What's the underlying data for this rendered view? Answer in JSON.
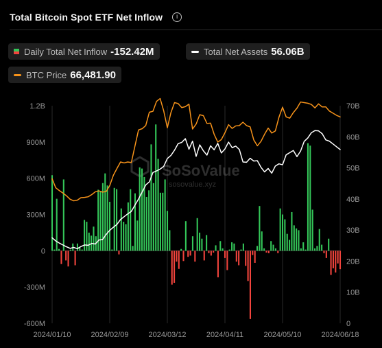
{
  "header": {
    "title": "Total Bitcoin Spot ETF Net Inflow",
    "info_icon": "info-icon"
  },
  "legend": {
    "inflow": {
      "label": "Daily Total Net Inflow",
      "value": "-152.42M"
    },
    "assets": {
      "label": "Total Net Assets",
      "value": "56.06B"
    },
    "price": {
      "label": "BTC Price",
      "value": "66,481.90"
    }
  },
  "watermark": {
    "brand": "SoSoValue",
    "site": "sosovalue.xyz"
  },
  "colors": {
    "positive": "#34c759",
    "negative": "#f2443d",
    "assets_line": "#ffffff",
    "price_line": "#f7931a",
    "grid": "#2a2a2a",
    "background": "#000000"
  },
  "chart_data": {
    "type": "bar",
    "x_tick_labels": [
      "2024/01/10",
      "2024/02/09",
      "2024/03/12",
      "2024/04/11",
      "2024/05/10",
      "2024/06/18"
    ],
    "left_axis": {
      "ticks": [
        "1.2B",
        "900M",
        "600M",
        "300M",
        "0",
        "-300M",
        "-600M"
      ],
      "ylim": [
        -600,
        1200
      ],
      "unit": "M USD"
    },
    "right_axis": {
      "ticks": [
        "70B",
        "60B",
        "50B",
        "40B",
        "30B",
        "20B",
        "10B",
        "0"
      ],
      "ylim": [
        0,
        70
      ],
      "unit": "B USD"
    },
    "grid": true,
    "series": [
      {
        "name": "Daily Total Net Inflow",
        "type": "bar",
        "values": [
          625,
          10,
          430,
          15,
          -110,
          590,
          -80,
          -130,
          10,
          60,
          -120,
          60,
          30,
          10,
          255,
          240,
          150,
          125,
          200,
          120,
          505,
          490,
          560,
          640,
          540,
          405,
          10,
          520,
          510,
          -30,
          350,
          240,
          220,
          400,
          510,
          40,
          475,
          250,
          690,
          680,
          610,
          445,
          500,
          880,
          560,
          1045,
          760,
          480,
          480,
          590,
          330,
          170,
          -280,
          -265,
          -90,
          -150,
          15,
          -85,
          245,
          -50,
          -40,
          120,
          -90,
          270,
          150,
          100,
          -80,
          130,
          -20,
          -40,
          -15,
          45,
          -220,
          80,
          20,
          -60,
          -160,
          10,
          70,
          60,
          -90,
          -120,
          10,
          60,
          -125,
          -250,
          -565,
          -35,
          -100,
          40,
          370,
          160,
          20,
          -15,
          -20,
          80,
          50,
          20,
          -20,
          350,
          300,
          260,
          140,
          90,
          320,
          210,
          185,
          170,
          20,
          70,
          10,
          890,
          870,
          340,
          20,
          40,
          180,
          50,
          -20,
          -60,
          100,
          -200,
          -145,
          -180,
          -105,
          -152.42
        ],
        "colors": {
          "positive": "#34c759",
          "negative": "#f2443d"
        }
      },
      {
        "name": "Total Net Assets",
        "type": "line",
        "axis": "right",
        "values": [
          27.5,
          26.5,
          25.8,
          25.2,
          24.6,
          24.1,
          24.4,
          24.0,
          24.7,
          25.2,
          25.1,
          25.7,
          25.5,
          26.8,
          26.9,
          28.6,
          29.9,
          30.9,
          31.8,
          33.4,
          34.3,
          35.2,
          36.0,
          38.0,
          40.0,
          42.2,
          44.5,
          45.5,
          48.5,
          49.0,
          49.6,
          50.5,
          53.0,
          54.0,
          55.7,
          57.8,
          58.2,
          59.4,
          56.0,
          58.6,
          53.7,
          57.4,
          55.5,
          54.1,
          57.1,
          55.8,
          57.9,
          54.8,
          56.1,
          58.3,
          56.5,
          57.0,
          55.9,
          51.9,
          51.8,
          53.1,
          52.2,
          52.3,
          50.2,
          48.7,
          49.8,
          48.3,
          50.6,
          51.3,
          51.0,
          54.2,
          54.9,
          55.6,
          53.6,
          55.4,
          58.5,
          59.6,
          61.3,
          62.0,
          61.9,
          61.0,
          59.0,
          58.6,
          57.7,
          56.8,
          55.9
        ],
        "color": "#ffffff"
      },
      {
        "name": "BTC Price",
        "type": "line",
        "axis": "right",
        "values": [
          46.5,
          43.6,
          42.7,
          41.9,
          41.0,
          39.9,
          39.4,
          39.6,
          40.4,
          40.5,
          40.7,
          41.4,
          42.3,
          42.6,
          42.2,
          42.4,
          44.3,
          47.6,
          49.8,
          51.9,
          51.6,
          51.9,
          51.7,
          57.0,
          62.2,
          62.6,
          63.6,
          67.9,
          68.2,
          71.4,
          72.3,
          68.3,
          62.9,
          67.8,
          71.0,
          70.7,
          69.4,
          69.7,
          70.5,
          62.5,
          64.1,
          67.1,
          66.8,
          64.3,
          64.4,
          60.8,
          58.3,
          59.1,
          61.3,
          63.9,
          62.7,
          63.5,
          63.6,
          64.7,
          63.6,
          63.2,
          59.0,
          57.1,
          58.5,
          60.8,
          62.8,
          61.2,
          61.9,
          66.3,
          69.5,
          66.4,
          66.0,
          67.8,
          69.2,
          71.2,
          71.0,
          70.8,
          70.4,
          69.3,
          70.6,
          69.6,
          69.6,
          68.3,
          67.6,
          66.9,
          66.4
        ],
        "color": "#f7931a"
      }
    ]
  }
}
